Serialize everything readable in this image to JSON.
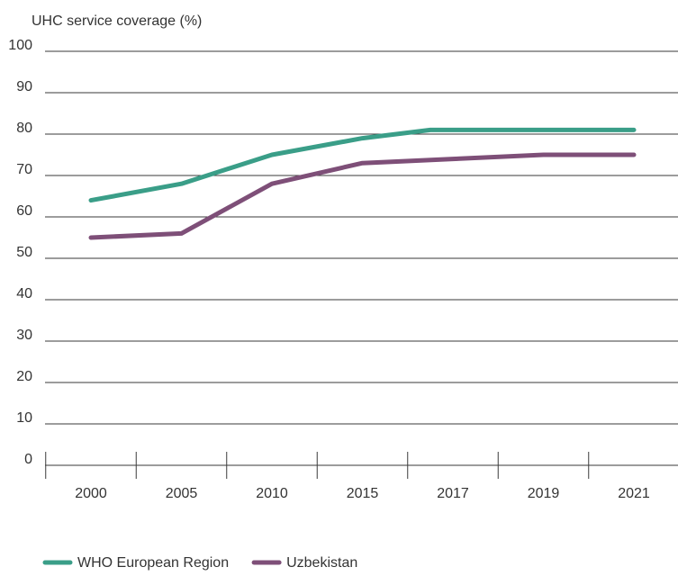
{
  "chart_data": {
    "type": "line",
    "ylabel": "UHC service coverage (%)",
    "categories": [
      "2000",
      "2005",
      "2010",
      "2015",
      "2017",
      "2019",
      "2021"
    ],
    "ylim": [
      0,
      100
    ],
    "yticks": [
      "0",
      "10",
      "20",
      "30",
      "40",
      "50",
      "60",
      "70",
      "80",
      "90",
      "100"
    ],
    "grid": true,
    "legend_position": "bottom-left",
    "series": [
      {
        "name": "WHO European Region",
        "color": "#3a9e88",
        "points": [
          {
            "x": 2000,
            "y": 64
          },
          {
            "x": 2005,
            "y": 68
          },
          {
            "x": 2010,
            "y": 75
          },
          {
            "x": 2015,
            "y": 79
          },
          {
            "x": 2016.5,
            "y": 81
          },
          {
            "x": 2021,
            "y": 81
          }
        ]
      },
      {
        "name": "Uzbekistan",
        "color": "#7e4f78",
        "points": [
          {
            "x": 2000,
            "y": 55
          },
          {
            "x": 2005,
            "y": 56
          },
          {
            "x": 2010,
            "y": 68
          },
          {
            "x": 2015,
            "y": 73
          },
          {
            "x": 2017,
            "y": 74
          },
          {
            "x": 2019,
            "y": 75
          },
          {
            "x": 2021,
            "y": 75
          }
        ]
      }
    ]
  }
}
